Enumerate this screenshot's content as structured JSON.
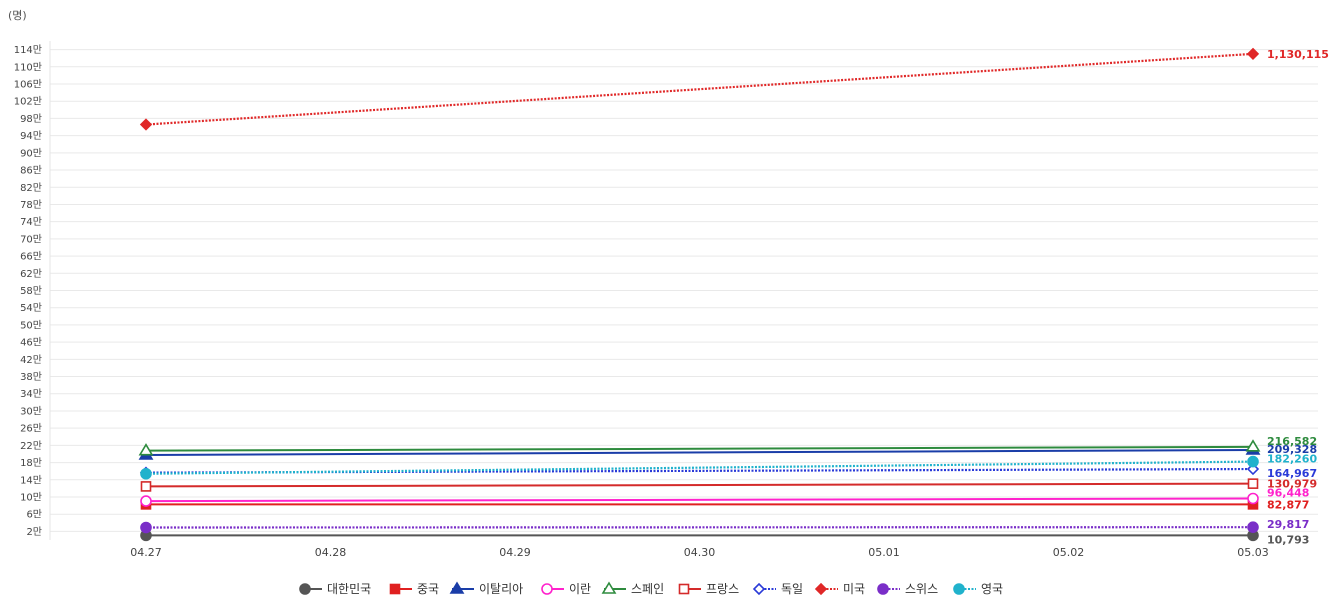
{
  "chart_data": {
    "type": "line",
    "unit_label": "(명)",
    "x": [
      "04.27",
      "04.28",
      "04.29",
      "04.30",
      "05.01",
      "05.02",
      "05.03"
    ],
    "ylim": [
      0,
      1160000
    ],
    "y_tick_values": [
      20000,
      60000,
      100000,
      140000,
      180000,
      220000,
      260000,
      300000,
      340000,
      380000,
      420000,
      460000,
      500000,
      540000,
      580000,
      620000,
      660000,
      700000,
      740000,
      780000,
      820000,
      860000,
      900000,
      940000,
      980000,
      1020000,
      1060000,
      1100000,
      1140000
    ],
    "y_tick_labels": [
      "2만",
      "6만",
      "10만",
      "14만",
      "18만",
      "22만",
      "26만",
      "30만",
      "34만",
      "38만",
      "42만",
      "46만",
      "50만",
      "54만",
      "58만",
      "62만",
      "66만",
      "70만",
      "74만",
      "78만",
      "82만",
      "86만",
      "90만",
      "94만",
      "98만",
      "102만",
      "106만",
      "110만",
      "114만"
    ],
    "grid": true,
    "legend_position": "bottom",
    "series": [
      {
        "name": "대한민국",
        "color": "#555555",
        "marker": "circle-filled",
        "dash": "solid",
        "values": [
          10752,
          null,
          null,
          null,
          null,
          null,
          10793
        ],
        "end_label": "10,793"
      },
      {
        "name": "중국",
        "color": "#e02020",
        "marker": "square-filled",
        "dash": "solid",
        "values": [
          82830,
          null,
          null,
          null,
          null,
          null,
          82877
        ],
        "end_label": "82,877"
      },
      {
        "name": "이탈리아",
        "color": "#1a3da8",
        "marker": "triangle-filled",
        "dash": "solid",
        "values": [
          197675,
          null,
          null,
          null,
          null,
          null,
          209328
        ],
        "end_label": "209,328"
      },
      {
        "name": "이란",
        "color": "#ff22cc",
        "marker": "circle-open",
        "dash": "solid",
        "values": [
          90481,
          null,
          null,
          null,
          null,
          null,
          96448
        ],
        "end_label": "96,448"
      },
      {
        "name": "스페인",
        "color": "#2e8b3e",
        "marker": "triangle-open",
        "dash": "solid",
        "values": [
          207634,
          null,
          null,
          null,
          null,
          null,
          216582
        ],
        "end_label": "216,582"
      },
      {
        "name": "프랑스",
        "color": "#d42a2a",
        "marker": "square-open",
        "dash": "solid",
        "values": [
          124575,
          null,
          null,
          null,
          null,
          null,
          130979
        ],
        "end_label": "130,979"
      },
      {
        "name": "독일",
        "color": "#2a3ad8",
        "marker": "diamond-open",
        "dash": "dotted",
        "values": [
          156513,
          null,
          null,
          null,
          null,
          null,
          164967
        ],
        "end_label": "164,967"
      },
      {
        "name": "미국",
        "color": "#e02828",
        "marker": "diamond-filled",
        "dash": "dotted",
        "values": [
          965783,
          null,
          null,
          null,
          null,
          null,
          1130115
        ],
        "end_label": "1,130,115"
      },
      {
        "name": "스위스",
        "color": "#7a2ec8",
        "marker": "circle-filled",
        "dash": "dotted",
        "values": [
          29061,
          null,
          null,
          null,
          null,
          null,
          29817
        ],
        "end_label": "29,817"
      },
      {
        "name": "영국",
        "color": "#20b2cc",
        "marker": "circle-filled",
        "dash": "dotted",
        "values": [
          154037,
          null,
          null,
          null,
          null,
          null,
          182260
        ],
        "end_label": "182,260"
      }
    ]
  }
}
